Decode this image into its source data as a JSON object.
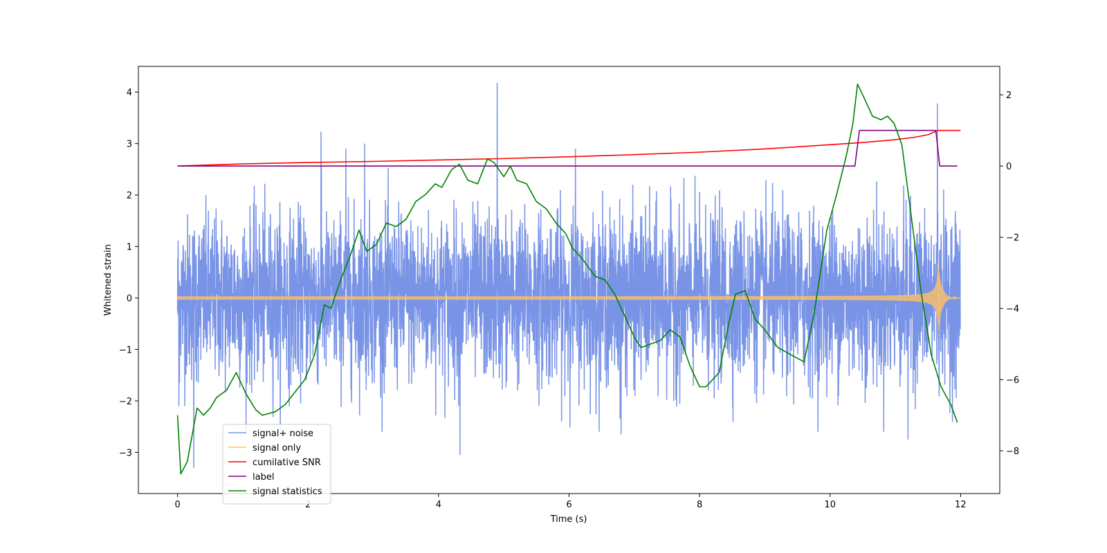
{
  "chart_data": {
    "type": "line",
    "title": "",
    "xlabel": "Time (s)",
    "ylabel": "Whitened strain",
    "xlim": [
      -0.6,
      12.6
    ],
    "ylim": [
      -3.8,
      4.5
    ],
    "y2lim": [
      -9.2,
      2.8
    ],
    "xticks": [
      0,
      2,
      4,
      6,
      8,
      10,
      12
    ],
    "xtick_labels": [
      "0",
      "2",
      "4",
      "6",
      "8",
      "10",
      "12"
    ],
    "yticks": [
      -3,
      -2,
      -1,
      0,
      1,
      2,
      3,
      4
    ],
    "ytick_labels": [
      "−3",
      "−2",
      "−1",
      "0",
      "1",
      "2",
      "3",
      "4"
    ],
    "y2ticks": [
      -8,
      -6,
      -4,
      -2,
      0,
      2
    ],
    "y2tick_labels": [
      "−8",
      "−6",
      "−4",
      "−2",
      "0",
      "2"
    ],
    "legend_position": "lower-left",
    "series": [
      {
        "name": "signal+ noise",
        "color": "#7994e6",
        "axis": "left",
        "description": "dense noise, std approx 0.8, range approx -3.1 to 4.2",
        "noise_std": 0.8,
        "spikes": [
          [
            0.02,
            -2.1
          ],
          [
            0.25,
            -3.3
          ],
          [
            2.2,
            3.23
          ],
          [
            2.58,
            2.9
          ],
          [
            2.87,
            3.0
          ],
          [
            4.33,
            -3.05
          ],
          [
            4.9,
            4.18
          ],
          [
            6.1,
            2.9
          ],
          [
            6.8,
            -2.65
          ],
          [
            11.65,
            3.78
          ],
          [
            11.2,
            -2.75
          ]
        ]
      },
      {
        "name": "signal only",
        "color": "#ffbf66",
        "axis": "left",
        "description": "chirp; amplitude grows from 0.03 to 0.7 at t=11.65 then decays to 0",
        "t_merge": 11.65,
        "amplitude_start": 0.03,
        "amplitude_peak": 0.7
      },
      {
        "name": "cumilative SNR",
        "color": "#ff0000",
        "axis": "right",
        "x": [
          0,
          1,
          2,
          3,
          4,
          5,
          6,
          7,
          8,
          9,
          10,
          10.5,
          11,
          11.3,
          11.5,
          11.65,
          11.8,
          12
        ],
        "y": [
          0.0,
          0.06,
          0.1,
          0.13,
          0.17,
          0.21,
          0.26,
          0.32,
          0.39,
          0.48,
          0.6,
          0.66,
          0.74,
          0.81,
          0.88,
          1.0,
          1.0,
          1.0
        ]
      },
      {
        "name": "label",
        "color": "#800080",
        "axis": "right",
        "x": [
          0,
          10.38,
          10.45,
          11.62,
          11.68,
          11.95
        ],
        "y": [
          0,
          0,
          1,
          1,
          0,
          0
        ]
      },
      {
        "name": "signal statistics",
        "color": "#008000",
        "axis": "right",
        "x": [
          0,
          0.05,
          0.15,
          0.25,
          0.3,
          0.4,
          0.5,
          0.6,
          0.75,
          0.9,
          1.05,
          1.2,
          1.3,
          1.4,
          1.5,
          1.65,
          1.8,
          1.95,
          2.1,
          2.25,
          2.35,
          2.5,
          2.65,
          2.78,
          2.9,
          3.05,
          3.2,
          3.35,
          3.5,
          3.65,
          3.8,
          3.95,
          4.05,
          4.2,
          4.32,
          4.45,
          4.6,
          4.75,
          4.85,
          5.0,
          5.1,
          5.2,
          5.35,
          5.5,
          5.65,
          5.8,
          5.95,
          6.05,
          6.2,
          6.4,
          6.55,
          6.7,
          6.85,
          7.0,
          7.1,
          7.25,
          7.4,
          7.55,
          7.7,
          7.85,
          8.0,
          8.1,
          8.3,
          8.45,
          8.55,
          8.7,
          8.85,
          9.0,
          9.2,
          9.4,
          9.6,
          9.75,
          9.95,
          10.1,
          10.25,
          10.35,
          10.42,
          10.5,
          10.65,
          10.78,
          10.88,
          10.98,
          11.1,
          11.25,
          11.4,
          11.55,
          11.7,
          11.85,
          11.95
        ],
        "y": [
          -7.0,
          -8.65,
          -8.3,
          -7.3,
          -6.8,
          -7.0,
          -6.8,
          -6.5,
          -6.3,
          -5.8,
          -6.4,
          -6.85,
          -7.0,
          -6.95,
          -6.9,
          -6.7,
          -6.35,
          -6.0,
          -5.3,
          -3.9,
          -4.0,
          -3.2,
          -2.5,
          -1.8,
          -2.4,
          -2.2,
          -1.6,
          -1.7,
          -1.5,
          -1.0,
          -0.8,
          -0.5,
          -0.6,
          -0.1,
          0.05,
          -0.4,
          -0.5,
          0.2,
          0.1,
          -0.3,
          0.0,
          -0.4,
          -0.5,
          -1.0,
          -1.2,
          -1.6,
          -1.9,
          -2.3,
          -2.6,
          -3.1,
          -3.2,
          -3.6,
          -4.2,
          -4.8,
          -5.1,
          -5.0,
          -4.9,
          -4.6,
          -4.8,
          -5.6,
          -6.2,
          -6.2,
          -5.8,
          -4.4,
          -3.6,
          -3.5,
          -4.3,
          -4.6,
          -5.1,
          -5.3,
          -5.5,
          -4.2,
          -1.8,
          -0.8,
          0.3,
          1.2,
          2.3,
          2.0,
          1.4,
          1.3,
          1.4,
          1.2,
          0.6,
          -1.5,
          -3.6,
          -5.3,
          -6.2,
          -6.7,
          -7.2
        ]
      }
    ]
  }
}
